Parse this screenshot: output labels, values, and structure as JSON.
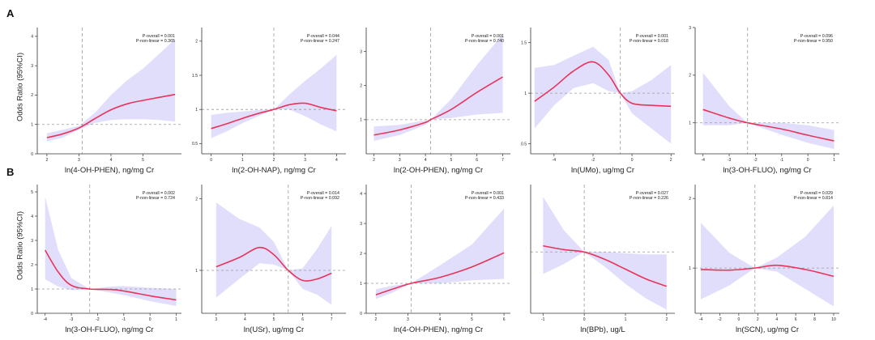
{
  "figure": {
    "rows": [
      {
        "label": "A",
        "ylabel": "Odds Ratio (95%CI)"
      },
      {
        "label": "B",
        "ylabel": "Odds Ratio (95%CI)"
      }
    ]
  },
  "colors": {
    "line": "#e8345a",
    "band": "#dcd8fb",
    "reference": "#9a9a9a",
    "axis": "#333333",
    "text": "#222222"
  },
  "chart_data": [
    {
      "type": "line",
      "panel": "A1",
      "xlabel": "ln(4-OH-PHEN), ng/mg Cr",
      "ylabel": "Odds Ratio (95%CI)",
      "annotation": [
        "P-overall = 0.001",
        "P-non-linear = 0.365"
      ],
      "xlim": [
        1.7,
        6.2
      ],
      "ylim": [
        0,
        4.3
      ],
      "xticks": [
        2,
        3,
        4,
        5
      ],
      "yticks": [
        0,
        1,
        2,
        3,
        4
      ],
      "ref_x": 3.1,
      "ref_y": 1,
      "x": [
        2.0,
        2.5,
        3.0,
        3.5,
        4.0,
        4.5,
        5.0,
        5.5,
        6.0
      ],
      "y": [
        0.55,
        0.68,
        0.88,
        1.2,
        1.5,
        1.7,
        1.82,
        1.92,
        2.02
      ],
      "lower": [
        0.42,
        0.55,
        0.82,
        1.05,
        1.15,
        1.18,
        1.18,
        1.15,
        1.1
      ],
      "upper": [
        0.7,
        0.82,
        0.95,
        1.4,
        2.0,
        2.5,
        2.9,
        3.4,
        3.9
      ]
    },
    {
      "type": "line",
      "panel": "A2",
      "xlabel": "ln(2-OH-NAP), ng/mg Cr",
      "ylabel": "",
      "annotation": [
        "P-overall = 0.044",
        "P-non-linear = 0.247"
      ],
      "xlim": [
        -0.3,
        4.3
      ],
      "ylim": [
        0.35,
        2.2
      ],
      "xticks": [
        0,
        1,
        2,
        3,
        4
      ],
      "yticks": [
        0.5,
        1.0,
        1.5,
        2.0
      ],
      "ref_x": 2.0,
      "ref_y": 1,
      "x": [
        0.0,
        0.5,
        1.0,
        1.5,
        2.0,
        2.5,
        3.0,
        3.5,
        4.0
      ],
      "y": [
        0.72,
        0.79,
        0.87,
        0.94,
        1.0,
        1.07,
        1.09,
        1.03,
        0.98
      ],
      "lower": [
        0.58,
        0.68,
        0.8,
        0.9,
        1.0,
        1.0,
        0.9,
        0.78,
        0.68
      ],
      "upper": [
        0.92,
        0.95,
        0.97,
        0.99,
        1.0,
        1.22,
        1.42,
        1.6,
        1.8
      ]
    },
    {
      "type": "line",
      "panel": "A3",
      "xlabel": "ln(2-OH-PHEN), ng/mg Cr",
      "ylabel": "",
      "annotation": [
        "P-overall = 0.001",
        "P-non-linear = 0.740"
      ],
      "xlim": [
        1.7,
        7.3
      ],
      "ylim": [
        0,
        3.7
      ],
      "xticks": [
        2,
        3,
        4,
        5,
        6,
        7
      ],
      "yticks": [
        1,
        2,
        3
      ],
      "ref_x": 4.2,
      "ref_y": 1,
      "x": [
        2.0,
        3.0,
        4.0,
        4.2,
        5.0,
        6.0,
        7.0
      ],
      "y": [
        0.55,
        0.7,
        0.92,
        1.0,
        1.3,
        1.8,
        2.25
      ],
      "lower": [
        0.38,
        0.55,
        0.85,
        1.0,
        1.05,
        1.15,
        1.2
      ],
      "upper": [
        0.8,
        0.85,
        0.98,
        1.0,
        1.6,
        2.6,
        3.5
      ]
    },
    {
      "type": "line",
      "panel": "A4",
      "xlabel": "ln(UMo), ug/mg Cr",
      "ylabel": "",
      "annotation": [
        "P-overall = 0.001",
        "P-non-linear = 0.018"
      ],
      "xlim": [
        -5.2,
        2.2
      ],
      "ylim": [
        0.4,
        1.65
      ],
      "xticks": [
        -4,
        -2,
        0,
        2
      ],
      "yticks": [
        0.5,
        1.0,
        1.5
      ],
      "ref_x": -0.6,
      "ref_y": 1,
      "x": [
        -5.0,
        -4.0,
        -3.0,
        -2.0,
        -1.2,
        -0.6,
        0.0,
        1.0,
        2.0
      ],
      "y": [
        0.92,
        1.06,
        1.22,
        1.31,
        1.18,
        1.0,
        0.9,
        0.88,
        0.87
      ],
      "lower": [
        0.65,
        0.88,
        1.05,
        1.1,
        1.02,
        1.0,
        0.8,
        0.65,
        0.5
      ],
      "upper": [
        1.25,
        1.28,
        1.37,
        1.46,
        1.33,
        1.0,
        1.02,
        1.13,
        1.28
      ]
    },
    {
      "type": "line",
      "panel": "A5",
      "xlabel": "ln(3-OH-FLUO), ng/mg Cr",
      "ylabel": "",
      "annotation": [
        "P-overall = 0.096",
        "P-non-linear = 0.950"
      ],
      "xlim": [
        -4.3,
        1.2
      ],
      "ylim": [
        0.35,
        3.0
      ],
      "xticks": [
        -4,
        -3,
        -2,
        -1,
        0,
        1
      ],
      "yticks": [
        1,
        2,
        3
      ],
      "ref_x": -2.3,
      "ref_y": 1,
      "x": [
        -4.0,
        -3.0,
        -2.3,
        -1.0,
        0.0,
        1.0
      ],
      "y": [
        1.28,
        1.1,
        1.0,
        0.87,
        0.74,
        0.62
      ],
      "lower": [
        0.95,
        0.95,
        1.0,
        0.75,
        0.58,
        0.45
      ],
      "upper": [
        2.05,
        1.35,
        1.0,
        1.0,
        0.95,
        0.85
      ]
    },
    {
      "type": "line",
      "panel": "B1",
      "xlabel": "ln(3-OH-FLUO), ng/mg Cr",
      "ylabel": "Odds Ratio (95%CI)",
      "annotation": [
        "P-overall = 0.002",
        "P-non-linear = 0.724"
      ],
      "xlim": [
        -4.3,
        1.2
      ],
      "ylim": [
        0,
        5.3
      ],
      "xticks": [
        -4,
        -3,
        -2,
        -1,
        0,
        1
      ],
      "yticks": [
        0,
        1,
        2,
        3,
        4,
        5
      ],
      "ref_x": -2.3,
      "ref_y": 1,
      "x": [
        -4.0,
        -3.5,
        -3.0,
        -2.3,
        -1.5,
        -1.0,
        0.0,
        1.0
      ],
      "y": [
        2.6,
        1.7,
        1.15,
        1.0,
        0.98,
        0.92,
        0.72,
        0.55
      ],
      "lower": [
        1.4,
        1.1,
        0.95,
        1.0,
        0.85,
        0.75,
        0.5,
        0.3
      ],
      "upper": [
        4.8,
        2.6,
        1.45,
        1.0,
        1.1,
        1.12,
        1.05,
        1.0
      ]
    },
    {
      "type": "line",
      "panel": "B2",
      "xlabel": "ln(USr), ug/mg Cr",
      "ylabel": "",
      "annotation": [
        "P-overall = 0.014",
        "P-non-linear = 0.092"
      ],
      "xlim": [
        2.5,
        7.5
      ],
      "ylim": [
        0.4,
        2.2
      ],
      "xticks": [
        3,
        4,
        5,
        6,
        7
      ],
      "yticks": [
        1,
        2
      ],
      "ref_x": 5.5,
      "ref_y": 1,
      "x": [
        3.0,
        3.8,
        4.5,
        5.0,
        5.5,
        6.0,
        6.5,
        7.0
      ],
      "y": [
        1.05,
        1.18,
        1.32,
        1.22,
        1.0,
        0.86,
        0.88,
        0.96
      ],
      "lower": [
        0.62,
        0.88,
        1.1,
        1.08,
        1.0,
        0.74,
        0.66,
        0.52
      ],
      "upper": [
        1.95,
        1.72,
        1.6,
        1.4,
        1.0,
        1.03,
        1.3,
        1.62
      ]
    },
    {
      "type": "line",
      "panel": "B3",
      "xlabel": "ln(4-OH-PHEN), ng/mg Cr",
      "ylabel": "",
      "annotation": [
        "P-overall = 0.001",
        "P-non-linear = 0.433"
      ],
      "xlim": [
        1.7,
        6.2
      ],
      "ylim": [
        0,
        4.3
      ],
      "xticks": [
        2,
        3,
        4,
        5,
        6
      ],
      "yticks": [
        0,
        1,
        2,
        3,
        4
      ],
      "ref_x": 3.1,
      "ref_y": 1,
      "x": [
        2.0,
        2.5,
        3.1,
        4.0,
        5.0,
        6.0
      ],
      "y": [
        0.62,
        0.8,
        1.0,
        1.2,
        1.55,
        2.02
      ],
      "lower": [
        0.48,
        0.68,
        1.0,
        1.0,
        1.1,
        1.15
      ],
      "upper": [
        0.8,
        0.92,
        1.0,
        1.6,
        2.3,
        3.5
      ]
    },
    {
      "type": "line",
      "panel": "B4",
      "xlabel": "ln(BPb), ug/L",
      "ylabel": "",
      "annotation": [
        "P-overall = 0.027",
        "P-non-linear = 0.226"
      ],
      "xlim": [
        -1.3,
        2.2
      ],
      "ylim": [
        0.5,
        1.55
      ],
      "xticks": [
        -1,
        0,
        1,
        2
      ],
      "yticks": [],
      "ref_x": 0.0,
      "ref_y": 1,
      "x": [
        -1.0,
        -0.5,
        0.0,
        0.5,
        1.0,
        1.5,
        2.0
      ],
      "y": [
        1.05,
        1.02,
        1.0,
        0.94,
        0.86,
        0.78,
        0.72
      ],
      "lower": [
        0.82,
        0.9,
        1.0,
        0.88,
        0.74,
        0.62,
        0.53
      ],
      "upper": [
        1.45,
        1.18,
        1.0,
        1.0,
        0.99,
        0.98,
        0.98
      ]
    },
    {
      "type": "line",
      "panel": "B5",
      "xlabel": "ln(SCN), ug/mg Cr",
      "ylabel": "",
      "annotation": [
        "P-overall = 0.029",
        "P-non-linear = 0.814"
      ],
      "xlim": [
        -4.6,
        10.6
      ],
      "ylim": [
        0.35,
        2.2
      ],
      "xticks": [
        -4,
        -2,
        0,
        2,
        4,
        6,
        8,
        10
      ],
      "yticks": [
        1,
        2
      ],
      "ref_x": 1.7,
      "ref_y": 1,
      "x": [
        -4.0,
        -1.0,
        1.7,
        4.0,
        7.0,
        10.0
      ],
      "y": [
        0.98,
        0.97,
        1.0,
        1.04,
        0.98,
        0.88
      ],
      "lower": [
        0.55,
        0.75,
        1.0,
        0.95,
        0.7,
        0.45
      ],
      "upper": [
        1.65,
        1.22,
        1.0,
        1.15,
        1.45,
        1.9
      ]
    }
  ]
}
